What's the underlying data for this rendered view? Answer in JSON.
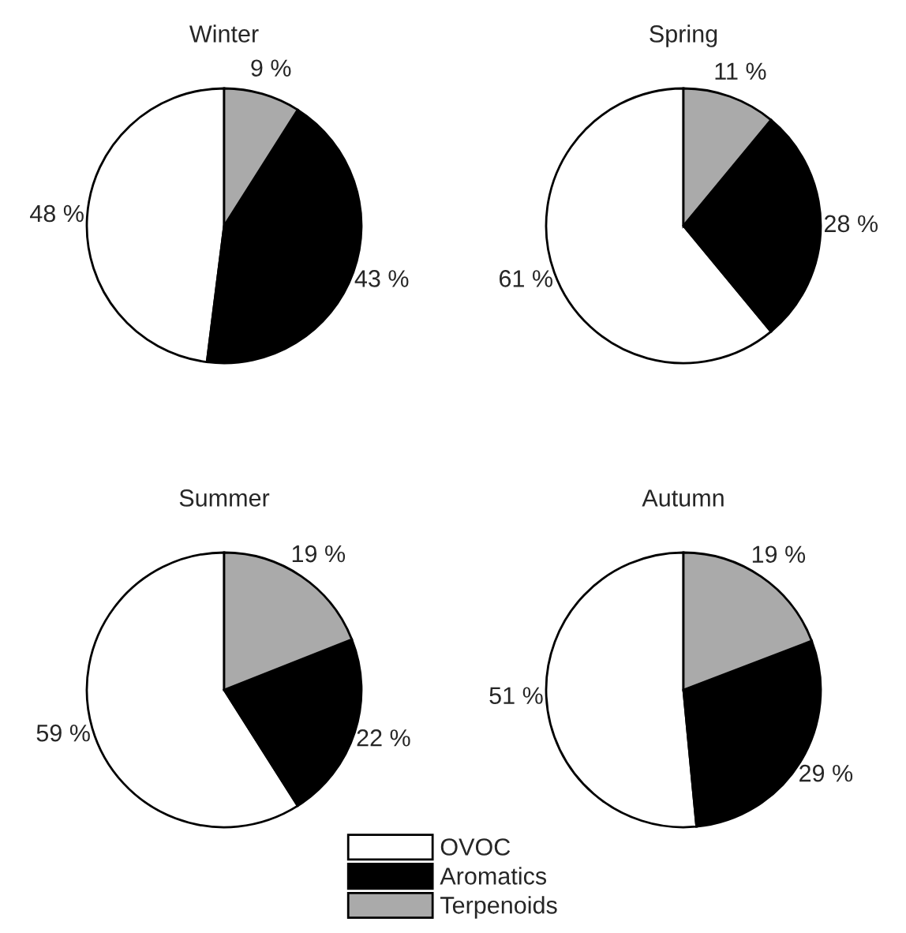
{
  "chart_data": [
    {
      "type": "pie",
      "title": "Winter",
      "categories": [
        "OVOC",
        "Aromatics",
        "Terpenoids"
      ],
      "values": [
        48,
        43,
        9
      ],
      "colors": [
        "#ffffff",
        "#000000",
        "#aaaaaa"
      ],
      "value_labels": [
        "48 %",
        "43 %",
        "9 %"
      ],
      "legend": "bottom"
    },
    {
      "type": "pie",
      "title": "Spring",
      "categories": [
        null,
        null,
        null
      ],
      "values": [
        61,
        28,
        11
      ],
      "colors": [
        "#ffffff",
        "#000000",
        "#aaaaaa"
      ],
      "value_labels": [
        "61 %",
        "28 %",
        "11 %"
      ]
    },
    {
      "type": "pie",
      "title": "Summer",
      "categories": [
        null,
        null,
        null
      ],
      "values": [
        59,
        22,
        19
      ],
      "colors": [
        "#ffffff",
        "#000000",
        "#aaaaaa"
      ],
      "value_labels": [
        "59 %",
        "22 %",
        "19 %"
      ]
    },
    {
      "type": "pie",
      "title": "Autumn",
      "categories": [
        null,
        null,
        null
      ],
      "values": [
        51,
        29,
        19
      ],
      "colors": [
        "#ffffff",
        "#000000",
        "#aaaaaa"
      ],
      "value_labels": [
        "51 %",
        "29 %",
        "19 %"
      ]
    }
  ]
}
